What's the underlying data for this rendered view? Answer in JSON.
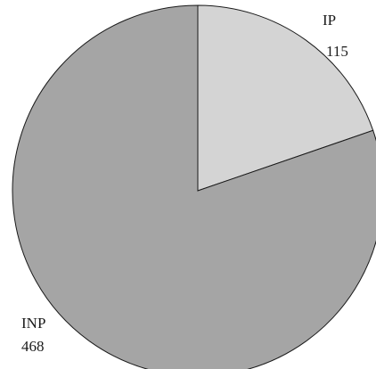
{
  "chart_data": {
    "type": "pie",
    "slices": [
      {
        "label": "IP",
        "value": 115,
        "color": "#d4d4d4"
      },
      {
        "label": "INP",
        "value": 468,
        "color": "#a5a5a5"
      }
    ],
    "start_angle_deg": 0,
    "direction": "clockwise"
  }
}
